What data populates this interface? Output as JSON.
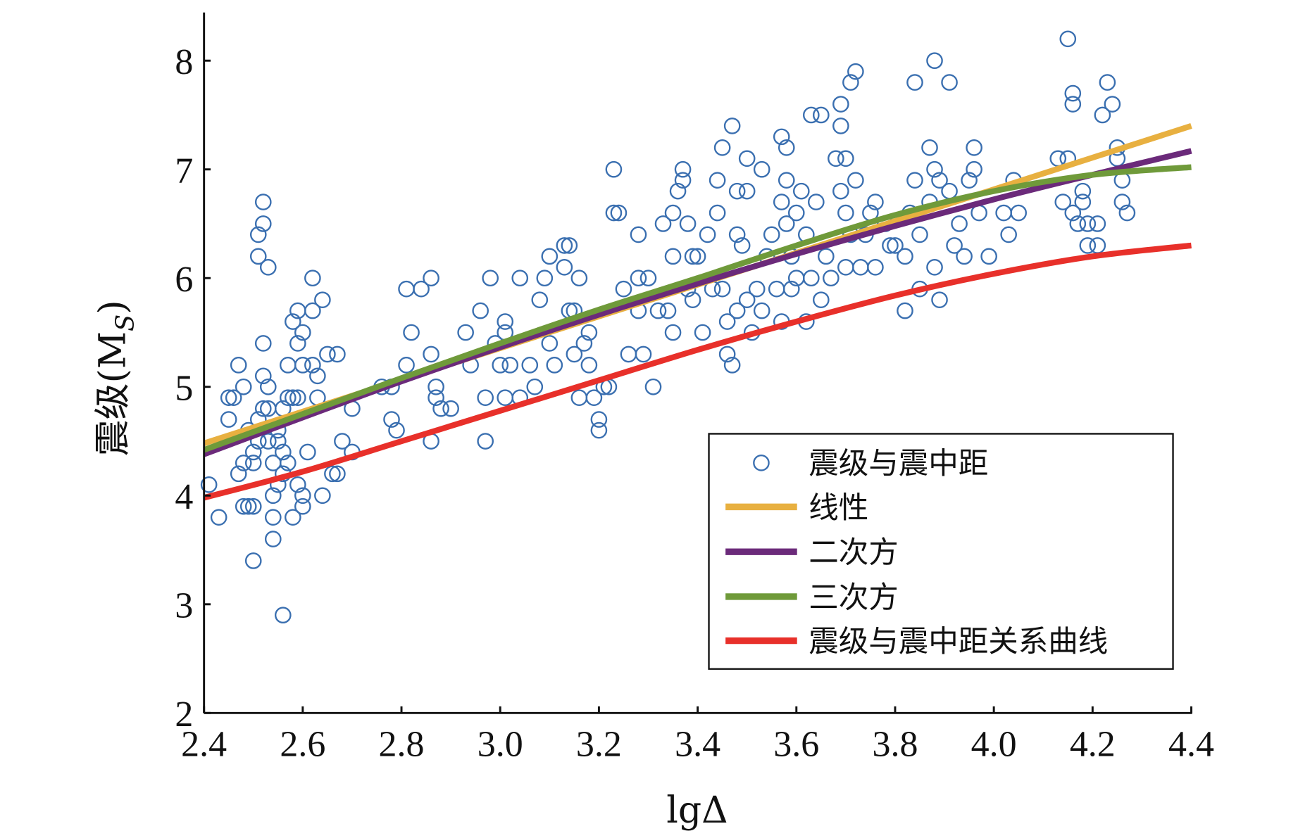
{
  "chart_data": {
    "type": "scatter",
    "title": "",
    "xlabel": "lgΔ",
    "ylabel": "震级(M",
    "ylabel_sub": "S",
    "ylabel_close": ")",
    "xlim": [
      2.4,
      4.4
    ],
    "ylim": [
      2,
      8.4
    ],
    "grid": false,
    "legend_position": "bottom-right",
    "x_ticks": [
      "2.4",
      "2.6",
      "2.8",
      "3.0",
      "3.2",
      "3.4",
      "3.6",
      "3.8",
      "4.0",
      "4.2",
      "4.4"
    ],
    "y_ticks": [
      "2",
      "3",
      "4",
      "5",
      "6",
      "7",
      "8"
    ],
    "colors": {
      "scatter": "#3a6fb0",
      "linear": "#e8b040",
      "quadratic": "#6b2a7a",
      "cubic": "#6f9a3a",
      "relation": "#e8302a"
    },
    "legend": [
      "震级与震中距",
      "线性",
      "二次方",
      "三次方",
      "震级与震中距关系曲线"
    ],
    "scatter": {
      "name": "震级与震中距",
      "points": [
        [
          2.41,
          4.1
        ],
        [
          2.43,
          3.8
        ],
        [
          2.45,
          4.9
        ],
        [
          2.46,
          4.9
        ],
        [
          2.45,
          4.7
        ],
        [
          2.47,
          5.2
        ],
        [
          2.48,
          5.0
        ],
        [
          2.47,
          4.2
        ],
        [
          2.48,
          4.3
        ],
        [
          2.48,
          3.9
        ],
        [
          2.49,
          3.9
        ],
        [
          2.5,
          3.9
        ],
        [
          2.5,
          4.4
        ],
        [
          2.5,
          4.3
        ],
        [
          2.51,
          4.7
        ],
        [
          2.51,
          6.4
        ],
        [
          2.51,
          6.2
        ],
        [
          2.52,
          6.5
        ],
        [
          2.52,
          6.7
        ],
        [
          2.53,
          6.1
        ],
        [
          2.52,
          5.4
        ],
        [
          2.52,
          5.1
        ],
        [
          2.53,
          5.0
        ],
        [
          2.53,
          4.8
        ],
        [
          2.52,
          4.8
        ],
        [
          2.53,
          4.5
        ],
        [
          2.54,
          4.3
        ],
        [
          2.54,
          4.0
        ],
        [
          2.54,
          3.8
        ],
        [
          2.54,
          3.6
        ],
        [
          2.5,
          3.4
        ],
        [
          2.56,
          2.9
        ],
        [
          2.55,
          4.6
        ],
        [
          2.55,
          4.5
        ],
        [
          2.56,
          4.4
        ],
        [
          2.56,
          4.8
        ],
        [
          2.57,
          4.9
        ],
        [
          2.57,
          5.2
        ],
        [
          2.58,
          5.6
        ],
        [
          2.59,
          5.7
        ],
        [
          2.59,
          5.4
        ],
        [
          2.6,
          5.5
        ],
        [
          2.6,
          5.2
        ],
        [
          2.58,
          4.9
        ],
        [
          2.59,
          4.9
        ],
        [
          2.59,
          4.1
        ],
        [
          2.58,
          3.8
        ],
        [
          2.6,
          4.0
        ],
        [
          2.6,
          3.9
        ],
        [
          2.61,
          4.4
        ],
        [
          2.62,
          6.0
        ],
        [
          2.62,
          5.7
        ],
        [
          2.62,
          5.2
        ],
        [
          2.63,
          4.9
        ],
        [
          2.63,
          5.1
        ],
        [
          2.64,
          5.8
        ],
        [
          2.65,
          5.3
        ],
        [
          2.67,
          5.3
        ],
        [
          2.64,
          4.0
        ],
        [
          2.66,
          4.2
        ],
        [
          2.67,
          4.2
        ],
        [
          2.68,
          4.5
        ],
        [
          2.7,
          4.8
        ],
        [
          2.7,
          4.4
        ],
        [
          2.55,
          4.1
        ],
        [
          2.56,
          4.2
        ],
        [
          2.57,
          4.3
        ],
        [
          2.49,
          4.6
        ],
        [
          2.51,
          4.5
        ],
        [
          2.76,
          5.0
        ],
        [
          2.78,
          4.7
        ],
        [
          2.79,
          4.6
        ],
        [
          2.78,
          5.0
        ],
        [
          2.81,
          5.9
        ],
        [
          2.82,
          5.5
        ],
        [
          2.81,
          5.2
        ],
        [
          2.84,
          5.9
        ],
        [
          2.86,
          6.0
        ],
        [
          2.86,
          5.3
        ],
        [
          2.87,
          5.0
        ],
        [
          2.86,
          4.5
        ],
        [
          2.87,
          4.9
        ],
        [
          2.88,
          4.8
        ],
        [
          2.9,
          4.8
        ],
        [
          2.93,
          5.5
        ],
        [
          2.94,
          5.2
        ],
        [
          2.96,
          5.7
        ],
        [
          2.97,
          4.9
        ],
        [
          2.97,
          4.5
        ],
        [
          2.98,
          6.0
        ],
        [
          2.99,
          5.4
        ],
        [
          3.0,
          5.2
        ],
        [
          3.01,
          5.6
        ],
        [
          3.01,
          5.5
        ],
        [
          3.01,
          4.9
        ],
        [
          3.02,
          5.2
        ],
        [
          3.04,
          6.0
        ],
        [
          3.04,
          4.9
        ],
        [
          3.06,
          5.2
        ],
        [
          3.07,
          5.0
        ],
        [
          3.08,
          5.8
        ],
        [
          3.09,
          6.0
        ],
        [
          3.1,
          6.2
        ],
        [
          3.1,
          5.4
        ],
        [
          3.11,
          5.2
        ],
        [
          3.13,
          6.3
        ],
        [
          3.14,
          6.3
        ],
        [
          3.13,
          6.1
        ],
        [
          3.14,
          5.7
        ],
        [
          3.15,
          5.7
        ],
        [
          3.16,
          6.0
        ],
        [
          3.15,
          5.3
        ],
        [
          3.16,
          4.9
        ],
        [
          3.17,
          5.4
        ],
        [
          3.18,
          5.2
        ],
        [
          3.18,
          5.5
        ],
        [
          3.19,
          4.9
        ],
        [
          3.2,
          4.7
        ],
        [
          3.2,
          4.6
        ],
        [
          3.21,
          5.0
        ],
        [
          3.22,
          5.0
        ],
        [
          3.23,
          7.0
        ],
        [
          3.23,
          6.6
        ],
        [
          3.24,
          6.6
        ],
        [
          3.25,
          5.9
        ],
        [
          3.26,
          5.3
        ],
        [
          3.28,
          5.7
        ],
        [
          3.28,
          6.0
        ],
        [
          3.28,
          6.4
        ],
        [
          3.29,
          5.3
        ],
        [
          3.3,
          6.0
        ],
        [
          3.31,
          5.0
        ],
        [
          3.32,
          5.7
        ],
        [
          3.33,
          6.5
        ],
        [
          3.34,
          5.7
        ],
        [
          3.35,
          6.6
        ],
        [
          3.35,
          6.2
        ],
        [
          3.35,
          5.5
        ],
        [
          3.36,
          6.8
        ],
        [
          3.37,
          7.0
        ],
        [
          3.37,
          6.9
        ],
        [
          3.38,
          6.5
        ],
        [
          3.38,
          5.9
        ],
        [
          3.39,
          6.2
        ],
        [
          3.39,
          5.8
        ],
        [
          3.4,
          6.2
        ],
        [
          3.41,
          5.5
        ],
        [
          3.42,
          6.4
        ],
        [
          3.43,
          5.9
        ],
        [
          3.44,
          6.9
        ],
        [
          3.44,
          6.6
        ],
        [
          3.45,
          7.2
        ],
        [
          3.45,
          5.9
        ],
        [
          3.46,
          5.6
        ],
        [
          3.46,
          5.3
        ],
        [
          3.47,
          7.4
        ],
        [
          3.47,
          5.2
        ],
        [
          3.48,
          6.8
        ],
        [
          3.48,
          6.4
        ],
        [
          3.48,
          5.7
        ],
        [
          3.49,
          6.3
        ],
        [
          3.5,
          7.1
        ],
        [
          3.5,
          6.8
        ],
        [
          3.5,
          5.8
        ],
        [
          3.51,
          5.5
        ],
        [
          3.52,
          5.9
        ],
        [
          3.53,
          7.0
        ],
        [
          3.53,
          5.7
        ],
        [
          3.54,
          6.2
        ],
        [
          3.55,
          6.4
        ],
        [
          3.56,
          5.9
        ],
        [
          3.57,
          7.3
        ],
        [
          3.57,
          6.7
        ],
        [
          3.58,
          7.2
        ],
        [
          3.58,
          6.9
        ],
        [
          3.58,
          6.5
        ],
        [
          3.59,
          6.2
        ],
        [
          3.59,
          5.9
        ],
        [
          3.6,
          6.6
        ],
        [
          3.6,
          6.0
        ],
        [
          3.61,
          6.8
        ],
        [
          3.62,
          6.4
        ],
        [
          3.63,
          7.5
        ],
        [
          3.63,
          6.0
        ],
        [
          3.64,
          6.7
        ],
        [
          3.65,
          7.5
        ],
        [
          3.65,
          5.8
        ],
        [
          3.66,
          6.2
        ],
        [
          3.67,
          6.0
        ],
        [
          3.68,
          7.1
        ],
        [
          3.69,
          7.6
        ],
        [
          3.69,
          7.4
        ],
        [
          3.69,
          6.8
        ],
        [
          3.7,
          7.1
        ],
        [
          3.7,
          6.6
        ],
        [
          3.7,
          6.1
        ],
        [
          3.71,
          6.4
        ],
        [
          3.71,
          7.8
        ],
        [
          3.72,
          7.9
        ],
        [
          3.72,
          6.9
        ],
        [
          3.73,
          6.1
        ],
        [
          3.74,
          6.4
        ],
        [
          3.75,
          6.6
        ],
        [
          3.76,
          6.7
        ],
        [
          3.76,
          6.1
        ],
        [
          3.78,
          6.5
        ],
        [
          3.79,
          6.3
        ],
        [
          3.8,
          6.3
        ],
        [
          3.82,
          6.2
        ],
        [
          3.83,
          6.6
        ],
        [
          3.84,
          7.8
        ],
        [
          3.84,
          6.9
        ],
        [
          3.85,
          6.4
        ],
        [
          3.85,
          5.9
        ],
        [
          3.87,
          6.7
        ],
        [
          3.87,
          7.2
        ],
        [
          3.88,
          8.0
        ],
        [
          3.88,
          7.0
        ],
        [
          3.88,
          6.1
        ],
        [
          3.89,
          6.9
        ],
        [
          3.89,
          5.8
        ],
        [
          3.91,
          7.8
        ],
        [
          3.91,
          6.8
        ],
        [
          3.92,
          6.3
        ],
        [
          3.93,
          6.5
        ],
        [
          3.94,
          6.2
        ],
        [
          3.95,
          6.9
        ],
        [
          3.96,
          7.0
        ],
        [
          3.96,
          7.2
        ],
        [
          3.97,
          6.6
        ],
        [
          3.99,
          6.2
        ],
        [
          4.02,
          6.6
        ],
        [
          4.03,
          6.4
        ],
        [
          4.04,
          6.9
        ],
        [
          4.05,
          6.6
        ],
        [
          4.13,
          7.1
        ],
        [
          4.15,
          7.1
        ],
        [
          4.14,
          6.7
        ],
        [
          4.15,
          8.2
        ],
        [
          4.16,
          7.7
        ],
        [
          4.16,
          7.6
        ],
        [
          4.16,
          6.6
        ],
        [
          4.17,
          6.5
        ],
        [
          4.18,
          6.8
        ],
        [
          4.18,
          6.7
        ],
        [
          4.19,
          6.5
        ],
        [
          4.19,
          6.3
        ],
        [
          4.21,
          6.5
        ],
        [
          4.21,
          6.3
        ],
        [
          4.22,
          7.5
        ],
        [
          4.23,
          7.8
        ],
        [
          4.24,
          7.6
        ],
        [
          4.25,
          7.2
        ],
        [
          4.25,
          7.1
        ],
        [
          4.26,
          6.9
        ],
        [
          4.26,
          6.7
        ],
        [
          4.27,
          6.6
        ],
        [
          3.82,
          5.7
        ],
        [
          3.62,
          5.6
        ],
        [
          3.57,
          5.6
        ]
      ]
    },
    "series": [
      {
        "name": "线性",
        "key": "linear",
        "x": [
          2.4,
          4.4
        ],
        "y": [
          4.48,
          7.4
        ]
      },
      {
        "name": "二次方",
        "key": "quadratic",
        "x": [
          2.4,
          2.8,
          3.2,
          3.6,
          4.0,
          4.4
        ],
        "y": [
          4.38,
          5.05,
          5.664,
          6.222,
          6.724,
          7.17
        ]
      },
      {
        "name": "三次方",
        "key": "cubic",
        "x": [
          2.4,
          2.6,
          2.8,
          3.0,
          3.2,
          3.4,
          3.6,
          3.8,
          4.0,
          4.2,
          4.4
        ],
        "y": [
          4.42,
          4.75,
          5.08,
          5.4,
          5.71,
          6.0,
          6.3,
          6.58,
          6.8,
          6.95,
          7.02
        ]
      },
      {
        "name": "震级与震中距关系曲线",
        "key": "relation",
        "x": [
          2.4,
          2.6,
          2.8,
          3.0,
          3.2,
          3.4,
          3.6,
          3.8,
          4.0,
          4.2,
          4.4
        ],
        "y": [
          3.98,
          4.22,
          4.5,
          4.78,
          5.06,
          5.34,
          5.6,
          5.84,
          6.04,
          6.2,
          6.3
        ]
      }
    ]
  }
}
